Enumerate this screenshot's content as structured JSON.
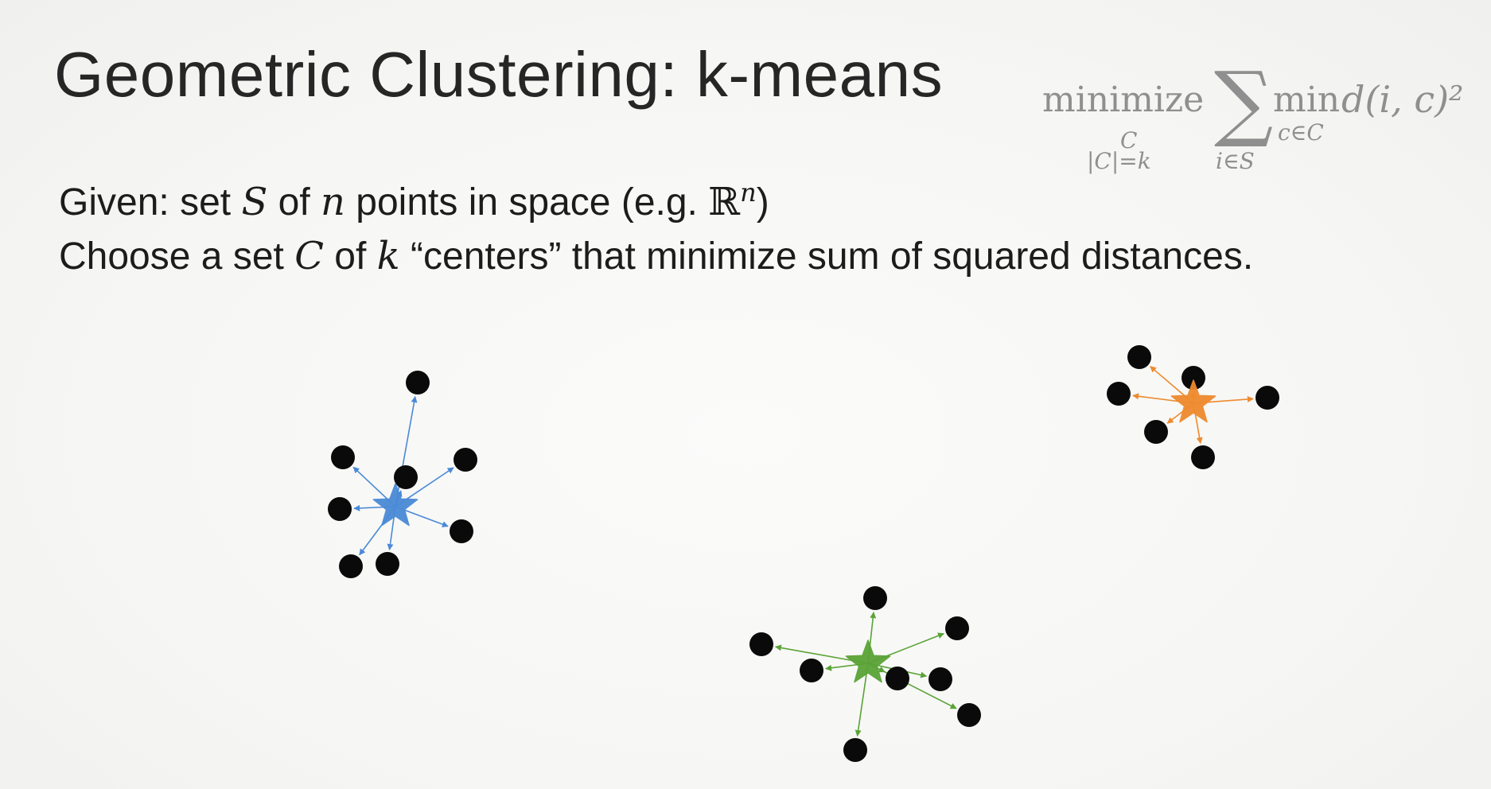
{
  "title": "Geometric Clustering: k-means",
  "formula": {
    "operator": "minimize",
    "operator_sub_1": "C",
    "operator_sub_2": "|C|=k",
    "sum_symbol": "∑",
    "sum_sub": "i∈S",
    "inner_op": "min",
    "inner_sub": "c∈C",
    "term": "d(i, c)²"
  },
  "line1": {
    "prefix": "Given: set ",
    "var_s": "S",
    "of": " of ",
    "var_n": "n",
    "suffix": " points in space (e.g. ",
    "space_symbol": "ℝ",
    "space_exp": "n",
    "close": ")"
  },
  "line2": {
    "prefix": "Choose a set ",
    "var_c": "C",
    "of": " of ",
    "var_k": "k",
    "suffix": " “centers” that minimize sum of squared distances."
  },
  "colors": {
    "point": "#0a0a0a",
    "cluster_blue": "#4a8ad6",
    "cluster_orange": "#ee8a2e",
    "cluster_green": "#5aa336",
    "formula": "#8f8f8f"
  },
  "clusters": [
    {
      "name": "blue",
      "color": "#4a8ad6",
      "center": [
        497,
        637
      ],
      "points": [
        [
          525,
          481
        ],
        [
          431,
          575
        ],
        [
          585,
          578
        ],
        [
          510,
          600
        ],
        [
          427,
          640
        ],
        [
          580,
          668
        ],
        [
          441,
          712
        ],
        [
          487,
          709
        ]
      ]
    },
    {
      "name": "orange",
      "color": "#ee8a2e",
      "center": [
        1500,
        507
      ],
      "points": [
        [
          1432,
          449
        ],
        [
          1500,
          475
        ],
        [
          1406,
          495
        ],
        [
          1593,
          500
        ],
        [
          1453,
          543
        ],
        [
          1512,
          575
        ]
      ]
    },
    {
      "name": "green",
      "color": "#5aa336",
      "center": [
        1091,
        834
      ],
      "points": [
        [
          1100,
          752
        ],
        [
          1203,
          790
        ],
        [
          957,
          810
        ],
        [
          1020,
          843
        ],
        [
          1128,
          853
        ],
        [
          1182,
          854
        ],
        [
          1218,
          899
        ],
        [
          1075,
          943
        ]
      ]
    }
  ]
}
